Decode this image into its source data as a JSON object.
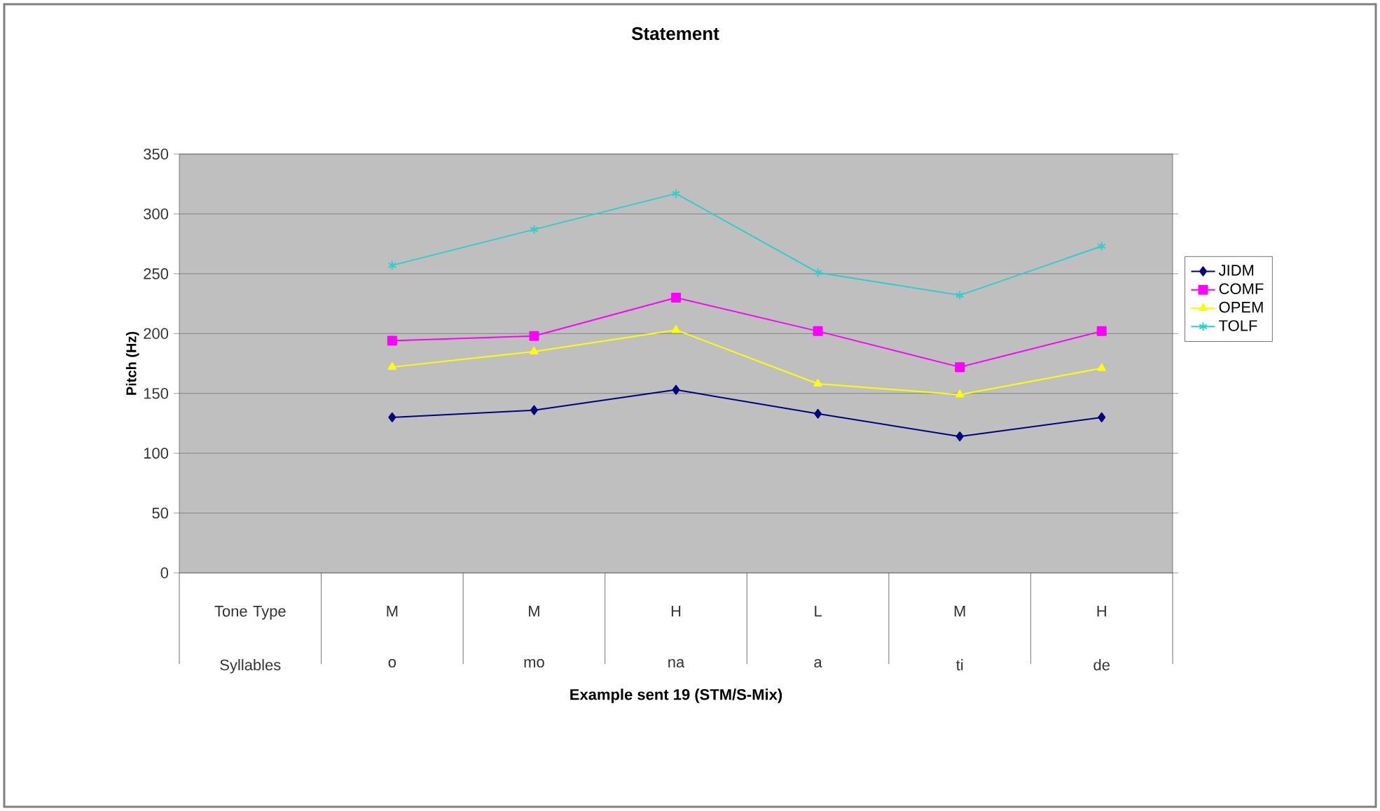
{
  "chart_data": {
    "type": "line",
    "title": "Statement",
    "xlabel": "Example sent 19 (STM/S-Mix)",
    "ylabel": "Pitch (Hz)",
    "categories": [
      "Syllables",
      "o",
      "mo",
      "na",
      "a",
      "ti",
      "de"
    ],
    "annotations": [
      "Tone Type",
      "M",
      "M",
      "H",
      "L",
      "M",
      "H"
    ],
    "series": [
      {
        "name": "JIDM",
        "color": "#000080",
        "marker": "diamond",
        "values": [
          null,
          130,
          136,
          153,
          133,
          114,
          130
        ]
      },
      {
        "name": "COMF",
        "color": "#ff00ff",
        "marker": "square",
        "values": [
          null,
          194,
          198,
          230,
          202,
          172,
          202
        ]
      },
      {
        "name": "OPEM",
        "color": "#ffff00",
        "marker": "triangle",
        "values": [
          null,
          172,
          185,
          203,
          158,
          149,
          171
        ]
      },
      {
        "name": "TOLF",
        "color": "#33cccc",
        "marker": "cross",
        "values": [
          null,
          257,
          287,
          317,
          251,
          232,
          273
        ]
      }
    ],
    "ylim": [
      0,
      350
    ],
    "yticks": [
      0,
      50,
      100,
      150,
      200,
      250,
      300,
      350
    ],
    "grid": "y",
    "legend": "right",
    "line_style": "solid"
  }
}
